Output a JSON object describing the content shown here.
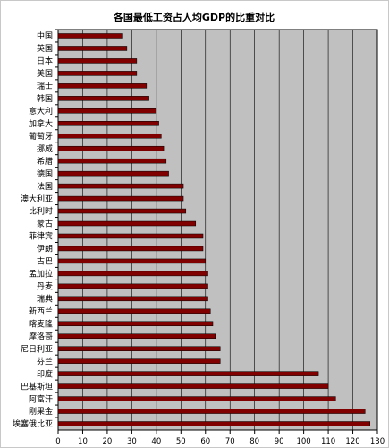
{
  "chart_data": {
    "type": "bar",
    "orientation": "horizontal",
    "title": "各国最低工资占人均GDP的比重对比",
    "xlabel": "",
    "ylabel": "",
    "xlim": [
      0,
      130
    ],
    "x_ticks": [
      "0",
      "10",
      "20",
      "30",
      "40",
      "50",
      "60",
      "70",
      "80",
      "90",
      "100",
      "110",
      "120",
      "130"
    ],
    "grid": "vertical",
    "plot_background": "#c0c0c0",
    "bar_color": "#800000",
    "categories": [
      "中国",
      "英国",
      "日本",
      "美国",
      "瑞士",
      "韩国",
      "意大利",
      "加拿大",
      "葡萄牙",
      "挪威",
      "希腊",
      "德国",
      "法国",
      "澳大利亚",
      "比利时",
      "蒙古",
      "菲律宾",
      "伊朗",
      "古巴",
      "孟加拉",
      "丹麦",
      "瑞典",
      "新西兰",
      "喀麦隆",
      "摩洛哥",
      "尼日利亚",
      "芬兰",
      "印度",
      "巴基斯坦",
      "阿富汗",
      "刚果金",
      "埃塞俄比亚"
    ],
    "values": [
      26,
      28,
      32,
      32,
      36,
      37,
      40,
      41,
      42,
      43,
      44,
      45,
      51,
      51,
      52,
      56,
      59,
      59,
      60,
      61,
      61,
      61,
      62,
      63,
      64,
      66,
      66,
      106,
      110,
      113,
      125,
      127
    ]
  }
}
